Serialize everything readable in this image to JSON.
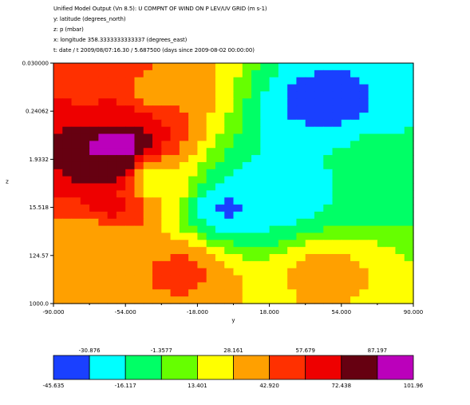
{
  "header": {
    "line1": "Unified Model Output (Vn 8.5): U COMPNT OF WIND ON P LEV/UV GRID (m s-1)",
    "line2": "y: latitude  (degrees_north)",
    "line3": "z: p  (mbar)",
    "line4": "x: longitude 358.3333333333337 (degrees_east)",
    "line5": "t: date / t 2009/08/07:16.30 / 5.687500 (days since 2009-08-02 00:00:00)"
  },
  "chart_data": {
    "type": "heatmap",
    "xlabel": "y",
    "ylabel": "z",
    "x_ticks": [
      "-90.000",
      "-54.000",
      "-18.000",
      "18.000",
      "54.000",
      "90.000"
    ],
    "x_tick_values": [
      -90,
      -54,
      -18,
      18,
      54,
      90
    ],
    "xlim": [
      -90,
      90
    ],
    "y_ticks": [
      "0.030000",
      "0.24062",
      "1.9332",
      "15.518",
      "124.57",
      "1000.0"
    ],
    "y_tick_values": [
      0.03,
      0.24062,
      1.9332,
      15.518,
      124.57,
      1000.0
    ],
    "ylim": [
      0.03,
      1000.0
    ],
    "y_scale": "log",
    "y_inverted": true,
    "colorbar": {
      "colors": [
        "#1a40ff",
        "#00ffff",
        "#00ff66",
        "#66ff00",
        "#ffff00",
        "#ffa000",
        "#ff3000",
        "#ee0000",
        "#660011",
        "#bb00bb"
      ],
      "labels_top": [
        "-30.876",
        "-1.3577",
        "28.161",
        "57.679",
        "87.197"
      ],
      "labels_bottom": [
        "-45.635",
        "-16.117",
        "13.401",
        "42.920",
        "72.438",
        "101.96"
      ],
      "min": -45.635,
      "max": 101.96
    },
    "features": [
      {
        "lat": -60,
        "p": 1.0,
        "value": 100
      },
      {
        "lat": -62,
        "p": 3.0,
        "value": 85
      },
      {
        "lat": -62,
        "p": 0.4,
        "value": 70
      },
      {
        "lat": -62,
        "p": 15.0,
        "value": 60
      },
      {
        "lat": -70,
        "p": 0.1,
        "value": 55
      },
      {
        "lat": -70,
        "p": 60.0,
        "value": 30
      },
      {
        "lat": -40,
        "p": 0.1,
        "value": 40
      },
      {
        "lat": -40,
        "p": 5.0,
        "value": 20
      },
      {
        "lat": -26,
        "p": 250.0,
        "value": 45
      },
      {
        "lat": 45,
        "p": 0.2,
        "value": -40
      },
      {
        "lat": 44,
        "p": 0.8,
        "value": -28
      },
      {
        "lat": 35,
        "p": 3.0,
        "value": -20
      },
      {
        "lat": 20,
        "p": 8.0,
        "value": -28
      },
      {
        "lat": 0,
        "p": 15.0,
        "value": -35
      },
      {
        "lat": 10,
        "p": 12.0,
        "value": -15
      },
      {
        "lat": 60,
        "p": 2.0,
        "value": -5
      },
      {
        "lat": 45,
        "p": 250.0,
        "value": 32
      }
    ],
    "background_value": 8
  }
}
